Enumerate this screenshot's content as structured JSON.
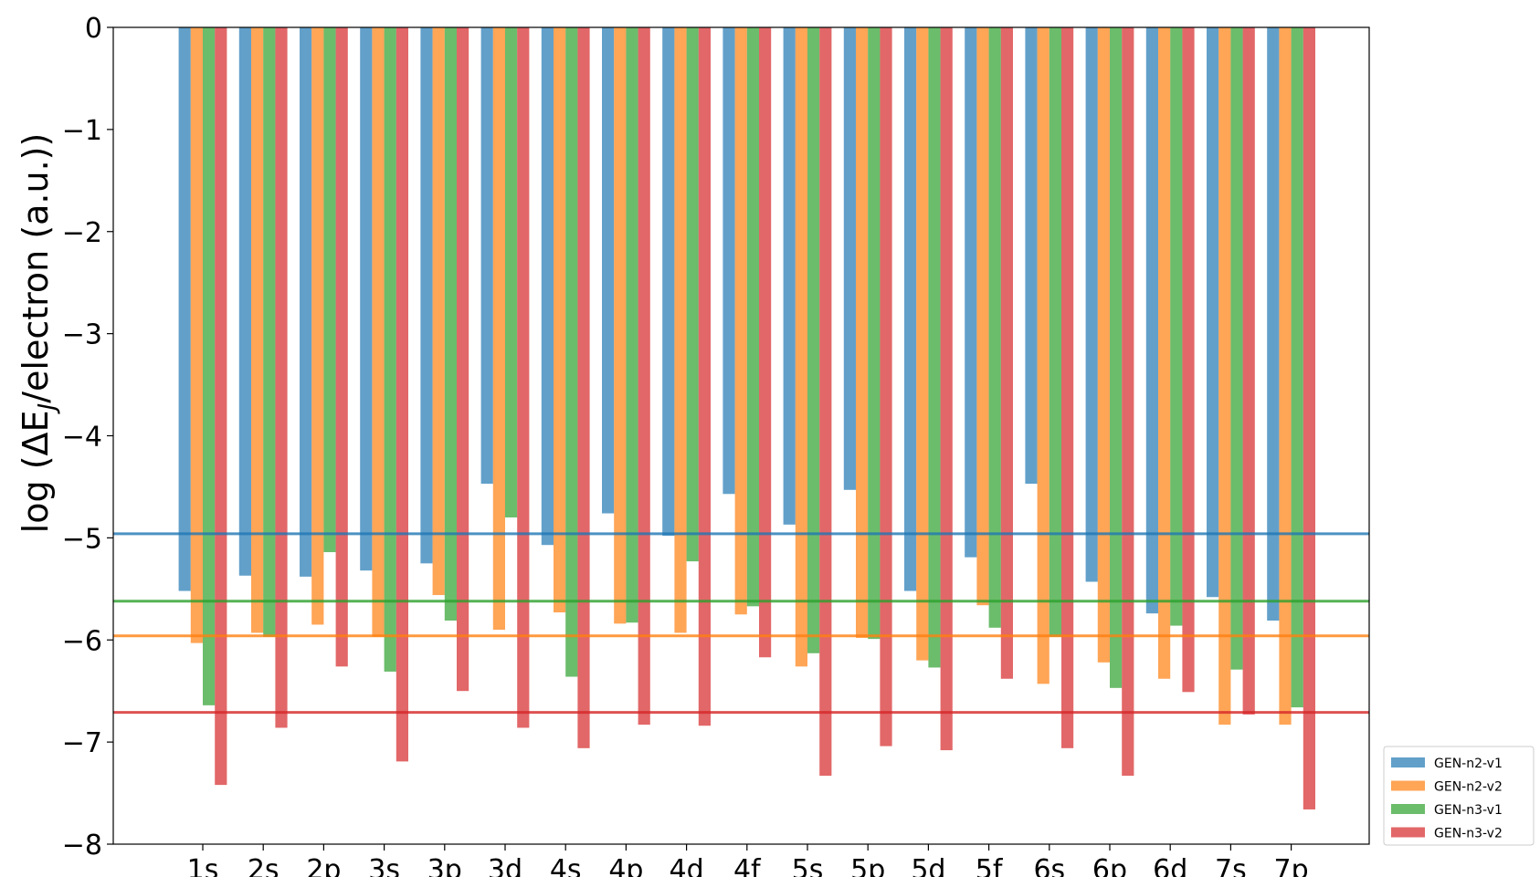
{
  "chart_data": {
    "type": "bar",
    "title": "",
    "xlabel": "",
    "ylabel": "log (ΔE",
    "ylabel_subscript": "J",
    "ylabel_suffix": "/electron (a.u.))",
    "ylim": [
      -8,
      0
    ],
    "yticks": [
      "0",
      "−1",
      "−2",
      "−3",
      "−4",
      "−5",
      "−6",
      "−7",
      "−8"
    ],
    "ytick_values": [
      0,
      -1,
      -2,
      -3,
      -4,
      -5,
      -6,
      -7,
      -8
    ],
    "grid": false,
    "legend_position": "bottom-right, outside plot",
    "categories": [
      "1s",
      "2s",
      "2p",
      "3s",
      "3p",
      "3d",
      "4s",
      "4p",
      "4d",
      "4f",
      "5s",
      "5p",
      "5d",
      "5f",
      "6s",
      "6p",
      "6d",
      "7s",
      "7p"
    ],
    "series": [
      {
        "name": "GEN-n2-v1",
        "color": "#1f77b4",
        "values": [
          -5.52,
          -5.37,
          -5.38,
          -5.32,
          -5.25,
          -4.47,
          -5.07,
          -4.76,
          -4.98,
          -4.57,
          -4.87,
          -4.53,
          -5.52,
          -5.19,
          -4.47,
          -5.43,
          -5.74,
          -5.58,
          -5.81
        ]
      },
      {
        "name": "GEN-n2-v2",
        "color": "#ff7f0e",
        "values": [
          -6.03,
          -5.93,
          -5.85,
          -5.97,
          -5.56,
          -5.9,
          -5.73,
          -5.84,
          -5.93,
          -5.75,
          -6.26,
          -5.98,
          -6.2,
          -5.66,
          -6.43,
          -6.22,
          -6.38,
          -6.83,
          -6.83
        ]
      },
      {
        "name": "GEN-n3-v1",
        "color": "#2ca02c",
        "values": [
          -6.64,
          -5.97,
          -5.14,
          -6.31,
          -5.81,
          -4.8,
          -6.36,
          -5.83,
          -5.23,
          -5.67,
          -6.13,
          -5.99,
          -6.27,
          -5.88,
          -5.97,
          -6.47,
          -5.86,
          -6.29,
          -6.66
        ]
      },
      {
        "name": "GEN-n3-v2",
        "color": "#d62728",
        "values": [
          -7.42,
          -6.86,
          -6.26,
          -7.19,
          -6.5,
          -6.86,
          -7.06,
          -6.83,
          -6.84,
          -6.17,
          -7.33,
          -7.04,
          -7.08,
          -6.38,
          -7.06,
          -7.33,
          -6.51,
          -6.73,
          -7.66
        ]
      }
    ],
    "reference_lines": [
      {
        "series": "GEN-n2-v1",
        "color": "#1f77b4",
        "y": -4.96
      },
      {
        "series": "GEN-n3-v1",
        "color": "#2ca02c",
        "y": -5.62
      },
      {
        "series": "GEN-n2-v2",
        "color": "#ff7f0e",
        "y": -5.96
      },
      {
        "series": "GEN-n3-v2",
        "color": "#d62728",
        "y": -6.71
      }
    ]
  }
}
